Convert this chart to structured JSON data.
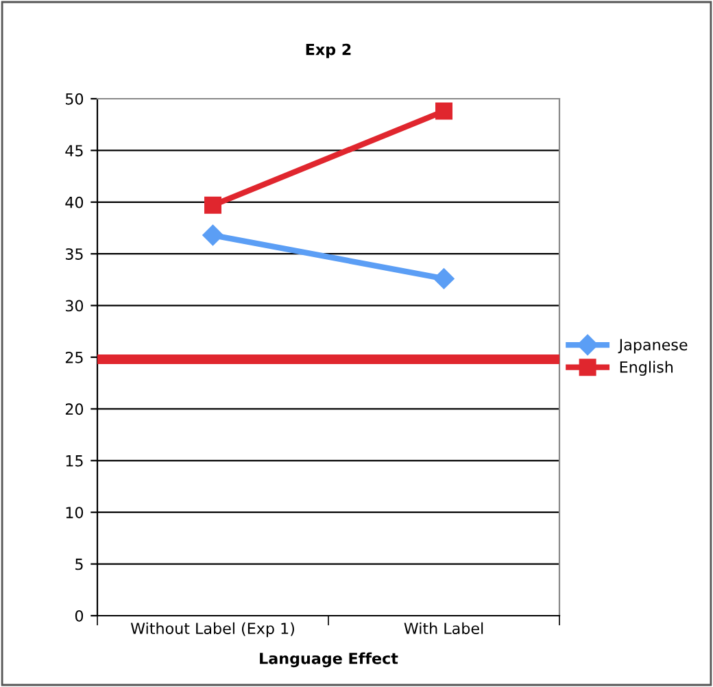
{
  "chart_data": {
    "type": "line",
    "title": "Exp 2",
    "xlabel": "Language Effect",
    "categories": [
      "Without Label (Exp 1)",
      "With Label"
    ],
    "series": [
      {
        "name": "Japanese",
        "color": "#5b9ef5",
        "values": [
          36.8,
          32.6
        ],
        "marker": "diamond"
      },
      {
        "name": "English",
        "color": "#e0262e",
        "values": [
          39.7,
          48.8
        ],
        "marker": "square"
      }
    ],
    "ylim": [
      0,
      50
    ],
    "yticks": [
      0,
      5,
      10,
      15,
      20,
      25,
      30,
      35,
      40,
      45,
      50
    ],
    "grid": "y",
    "legend": "right",
    "ref_lines": [
      {
        "axis": "y",
        "value": 24.8,
        "color": "#e0262e",
        "line_style": "solid"
      }
    ]
  }
}
